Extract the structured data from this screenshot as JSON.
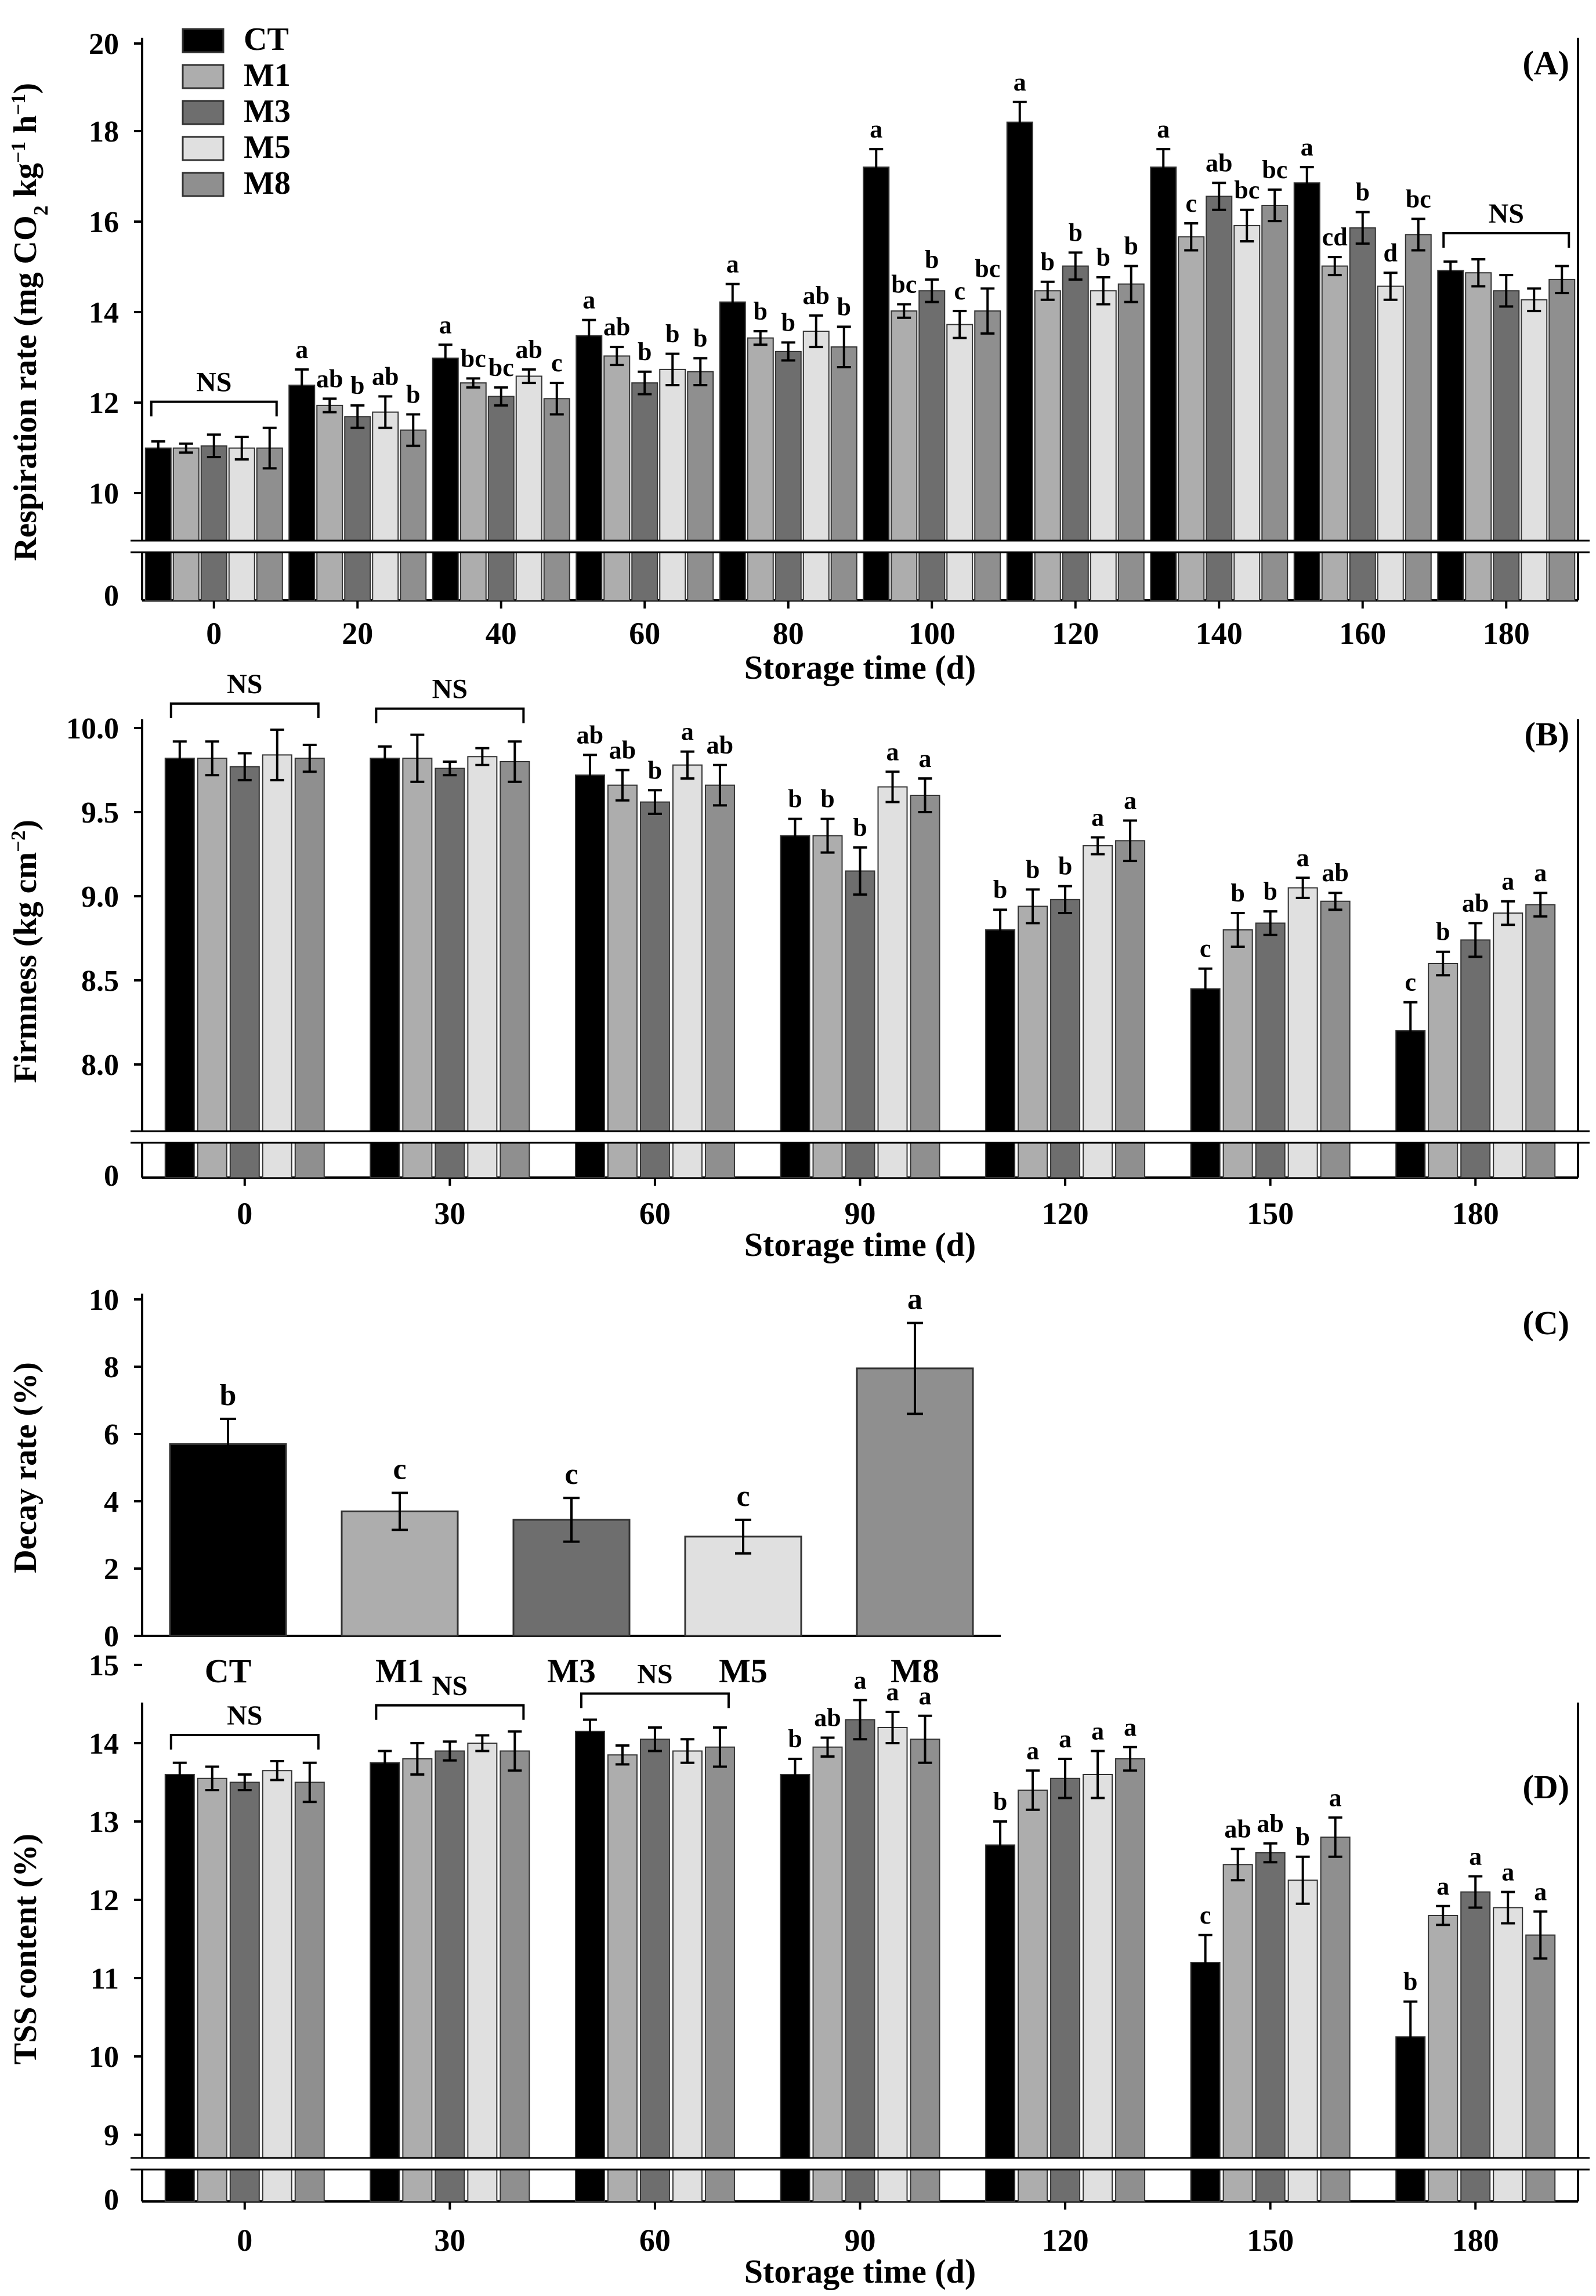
{
  "chart_data": [
    {
      "type": "bar",
      "panel": "(A)",
      "xlabel": "Storage time (d)",
      "ylabel": "Respiration rate (mg CO₂ kg⁻¹ h⁻¹)",
      "ylim": [
        10,
        20
      ],
      "yticks": [
        "10",
        "12",
        "14",
        "16",
        "18",
        "20"
      ],
      "axis_break": true,
      "zero_label": "0",
      "legend": "top-left",
      "categories": [
        "0",
        "20",
        "40",
        "60",
        "80",
        "100",
        "120",
        "140",
        "160",
        "180"
      ],
      "series": [
        {
          "name": "CT",
          "color": "#000000",
          "values": [
            11.0,
            12.4,
            13.0,
            13.5,
            14.25,
            17.25,
            18.25,
            17.25,
            16.9,
            14.95
          ],
          "errors": [
            0.15,
            0.35,
            0.3,
            0.35,
            0.4,
            0.4,
            0.45,
            0.4,
            0.35,
            0.2
          ],
          "letters": [
            "",
            "a",
            "a",
            "a",
            "a",
            "a",
            "a",
            "a",
            "a",
            ""
          ]
        },
        {
          "name": "M1",
          "color": "#adadad",
          "values": [
            11.0,
            11.95,
            12.45,
            13.05,
            13.45,
            14.05,
            14.5,
            15.7,
            15.05,
            14.9
          ],
          "errors": [
            0.1,
            0.15,
            0.1,
            0.2,
            0.15,
            0.15,
            0.2,
            0.3,
            0.2,
            0.3
          ],
          "letters": [
            "",
            "ab",
            "bc",
            "ab",
            "b",
            "bc",
            "b",
            "c",
            "cd",
            ""
          ]
        },
        {
          "name": "M3",
          "color": "#6e6e6e",
          "values": [
            11.05,
            11.7,
            12.15,
            12.45,
            13.15,
            14.5,
            15.05,
            16.6,
            15.9,
            14.5
          ],
          "errors": [
            0.25,
            0.25,
            0.2,
            0.25,
            0.2,
            0.25,
            0.3,
            0.3,
            0.35,
            0.35
          ],
          "letters": [
            "",
            "b",
            "bc",
            "b",
            "b",
            "b",
            "b",
            "ab",
            "b",
            ""
          ]
        },
        {
          "name": "M5",
          "color": "#e0e0e0",
          "values": [
            11.0,
            11.8,
            12.6,
            12.75,
            13.6,
            13.75,
            14.5,
            15.95,
            14.6,
            14.3
          ],
          "errors": [
            0.25,
            0.35,
            0.15,
            0.35,
            0.35,
            0.3,
            0.3,
            0.35,
            0.3,
            0.25
          ],
          "letters": [
            "",
            "ab",
            "ab",
            "b",
            "ab",
            "c",
            "b",
            "bc",
            "d",
            ""
          ]
        },
        {
          "name": "M8",
          "color": "#8f8f8f",
          "values": [
            11.0,
            11.4,
            12.1,
            12.7,
            13.25,
            14.05,
            14.65,
            16.4,
            15.75,
            14.75
          ],
          "errors": [
            0.45,
            0.35,
            0.35,
            0.3,
            0.45,
            0.5,
            0.4,
            0.35,
            0.35,
            0.3
          ],
          "letters": [
            "",
            "b",
            "c",
            "b",
            "b",
            "bc",
            "b",
            "bc",
            "bc",
            ""
          ]
        }
      ],
      "ns_brackets": [
        {
          "category": "0",
          "label": "NS"
        },
        {
          "category": "180",
          "label": "NS"
        }
      ]
    },
    {
      "type": "bar",
      "panel": "(B)",
      "xlabel": "Storage time (d)",
      "ylabel": "Firmness (kg cm⁻²)",
      "ylim": [
        7.6,
        10.05
      ],
      "yticks": [
        "8.0",
        "8.5",
        "9.0",
        "9.5",
        "10.0"
      ],
      "axis_break": true,
      "zero_label": "0",
      "categories": [
        "0",
        "30",
        "60",
        "90",
        "120",
        "150",
        "180"
      ],
      "series": [
        {
          "name": "CT",
          "color": "#000000",
          "values": [
            9.82,
            9.82,
            9.72,
            9.36,
            8.8,
            8.45,
            8.2
          ],
          "errors": [
            0.1,
            0.07,
            0.12,
            0.1,
            0.12,
            0.12,
            0.17
          ],
          "letters": [
            "",
            "",
            "ab",
            "b",
            "b",
            "c",
            "c"
          ]
        },
        {
          "name": "M1",
          "color": "#adadad",
          "values": [
            9.82,
            9.82,
            9.66,
            9.36,
            8.94,
            8.8,
            8.6
          ],
          "errors": [
            0.1,
            0.14,
            0.09,
            0.1,
            0.1,
            0.1,
            0.07
          ],
          "letters": [
            "",
            "",
            "ab",
            "b",
            "b",
            "b",
            "b"
          ]
        },
        {
          "name": "M3",
          "color": "#6e6e6e",
          "values": [
            9.77,
            9.76,
            9.56,
            9.15,
            8.98,
            8.84,
            8.74
          ],
          "errors": [
            0.08,
            0.04,
            0.07,
            0.14,
            0.08,
            0.07,
            0.1
          ],
          "letters": [
            "",
            "",
            "b",
            "b",
            "b",
            "b",
            "ab"
          ]
        },
        {
          "name": "M5",
          "color": "#e0e0e0",
          "values": [
            9.84,
            9.83,
            9.78,
            9.65,
            9.3,
            9.05,
            8.9
          ],
          "errors": [
            0.15,
            0.05,
            0.08,
            0.09,
            0.05,
            0.06,
            0.07
          ],
          "letters": [
            "",
            "",
            "a",
            "a",
            "a",
            "a",
            "a"
          ]
        },
        {
          "name": "M8",
          "color": "#8f8f8f",
          "values": [
            9.82,
            9.8,
            9.66,
            9.6,
            9.33,
            8.97,
            8.95
          ],
          "errors": [
            0.08,
            0.12,
            0.12,
            0.1,
            0.12,
            0.05,
            0.07
          ],
          "letters": [
            "",
            "",
            "ab",
            "a",
            "a",
            "ab",
            "a"
          ]
        }
      ],
      "ns_brackets": [
        {
          "category": "0",
          "label": "NS"
        },
        {
          "category": "30",
          "label": "NS"
        }
      ]
    },
    {
      "type": "bar",
      "panel": "(C)",
      "ylabel": "Decay rate (%)",
      "ylim": [
        0,
        10
      ],
      "yticks": [
        "0",
        "2",
        "4",
        "6",
        "8",
        "10"
      ],
      "categories": [
        "CT",
        "M1",
        "M3",
        "M5",
        "M8"
      ],
      "colors": [
        "#000000",
        "#adadad",
        "#6e6e6e",
        "#e0e0e0",
        "#8f8f8f"
      ],
      "values": [
        5.7,
        3.7,
        3.45,
        2.95,
        7.95
      ],
      "errors": [
        0.75,
        0.55,
        0.65,
        0.5,
        1.35
      ],
      "letters": [
        "b",
        "c",
        "c",
        "c",
        "a"
      ]
    },
    {
      "type": "bar",
      "panel": "(D)",
      "xlabel": "Storage time (d)",
      "ylabel": "TSS content (%)",
      "ylim": [
        8.5,
        15
      ],
      "yticks": [
        "9",
        "10",
        "11",
        "12",
        "13",
        "14",
        "15"
      ],
      "axis_break": true,
      "zero_label": "0",
      "categories": [
        "0",
        "30",
        "60",
        "90",
        "120",
        "150",
        "180"
      ],
      "series": [
        {
          "name": "CT",
          "color": "#000000",
          "values": [
            13.6,
            13.75,
            14.15,
            13.6,
            12.7,
            11.2,
            10.25
          ],
          "errors": [
            0.15,
            0.15,
            0.15,
            0.2,
            0.3,
            0.35,
            0.45
          ],
          "letters": [
            "",
            "",
            "",
            "b",
            "b",
            "c",
            "b"
          ]
        },
        {
          "name": "M1",
          "color": "#adadad",
          "values": [
            13.55,
            13.8,
            13.85,
            13.95,
            13.4,
            12.45,
            11.8
          ],
          "errors": [
            0.15,
            0.2,
            0.12,
            0.12,
            0.25,
            0.2,
            0.12
          ],
          "letters": [
            "",
            "",
            "",
            "ab",
            "a",
            "ab",
            "a"
          ]
        },
        {
          "name": "M3",
          "color": "#6e6e6e",
          "values": [
            13.5,
            13.9,
            14.05,
            14.3,
            13.55,
            12.6,
            12.1
          ],
          "errors": [
            0.1,
            0.12,
            0.15,
            0.25,
            0.25,
            0.12,
            0.2
          ],
          "letters": [
            "",
            "",
            "",
            "a",
            "a",
            "ab",
            "a"
          ]
        },
        {
          "name": "M5",
          "color": "#e0e0e0",
          "values": [
            13.65,
            14.0,
            13.9,
            14.2,
            13.6,
            12.25,
            11.9
          ],
          "errors": [
            0.12,
            0.1,
            0.15,
            0.2,
            0.3,
            0.3,
            0.2
          ],
          "letters": [
            "",
            "",
            "",
            "a",
            "a",
            "b",
            "a"
          ]
        },
        {
          "name": "M8",
          "color": "#8f8f8f",
          "values": [
            13.5,
            13.9,
            13.95,
            14.05,
            13.8,
            12.8,
            11.55
          ],
          "errors": [
            0.25,
            0.25,
            0.25,
            0.3,
            0.15,
            0.25,
            0.3
          ],
          "letters": [
            "",
            "",
            "",
            "a",
            "a",
            "a",
            "a"
          ]
        }
      ],
      "ns_brackets": [
        {
          "category": "0",
          "label": "NS"
        },
        {
          "category": "30",
          "label": "NS"
        },
        {
          "category": "60",
          "label": "NS"
        }
      ]
    }
  ]
}
